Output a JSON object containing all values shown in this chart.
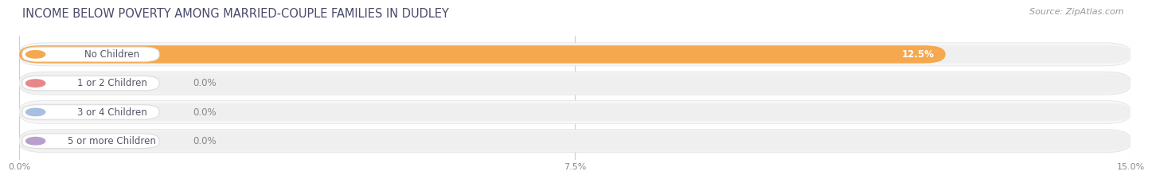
{
  "title": "INCOME BELOW POVERTY AMONG MARRIED-COUPLE FAMILIES IN DUDLEY",
  "source": "Source: ZipAtlas.com",
  "categories": [
    "No Children",
    "1 or 2 Children",
    "3 or 4 Children",
    "5 or more Children"
  ],
  "values": [
    12.5,
    0.0,
    0.0,
    0.0
  ],
  "bar_colors": [
    "#f5a84e",
    "#e8868a",
    "#a8bfe0",
    "#b8a0cc"
  ],
  "bar_bg_color": "#efefef",
  "row_bg_colors": [
    "#f7f7f7",
    "#f2f2f2"
  ],
  "xlim": [
    0,
    15.0
  ],
  "xticks": [
    0.0,
    7.5,
    15.0
  ],
  "xticklabels": [
    "0.0%",
    "7.5%",
    "15.0%"
  ],
  "title_fontsize": 10.5,
  "source_fontsize": 8,
  "label_fontsize": 8.5,
  "value_fontsize": 8.5,
  "bar_height": 0.62,
  "fig_bg_color": "#ffffff",
  "grid_color": "#cccccc",
  "title_color": "#4a4a6a",
  "source_color": "#999999",
  "label_color": "#555566",
  "value_color_on_bar": "#ffffff",
  "value_color_off_bar": "#888888"
}
